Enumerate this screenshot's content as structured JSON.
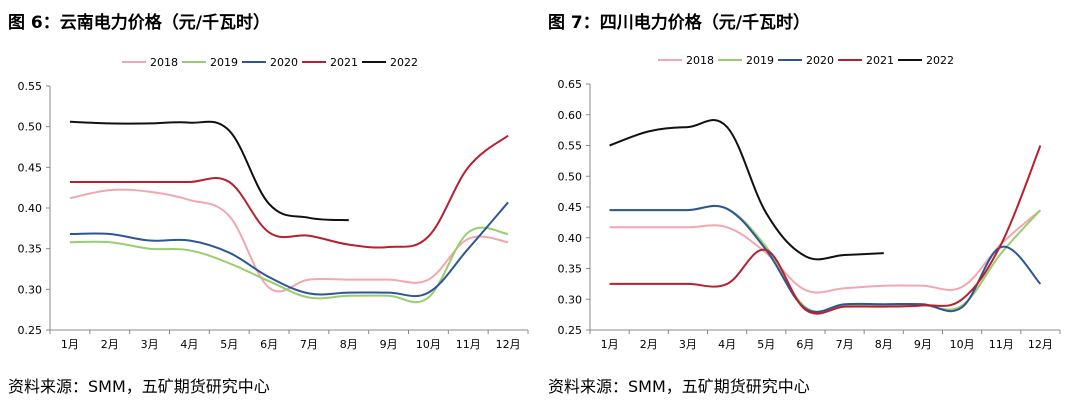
{
  "charts": [
    {
      "title": "图 6：云南电力价格（元/千瓦时）",
      "source": "资料来源：SMM，五矿期货研究中心",
      "chart_data": {
        "type": "line",
        "categories": [
          "1月",
          "2月",
          "3月",
          "4月",
          "5月",
          "6月",
          "7月",
          "8月",
          "9月",
          "10月",
          "11月",
          "12月"
        ],
        "ylim": [
          0.25,
          0.55
        ],
        "yticks": [
          "0.25",
          "0.30",
          "0.35",
          "0.40",
          "0.45",
          "0.50",
          "0.55"
        ],
        "ytick_values": [
          0.25,
          0.3,
          0.35,
          0.4,
          0.45,
          0.5,
          0.55
        ],
        "grid": false,
        "legend_position": "top",
        "series": [
          {
            "name": "2018",
            "color": "#f4a6ae",
            "values": [
              0.412,
              0.422,
              0.42,
              0.41,
              0.39,
              0.302,
              0.312,
              0.312,
              0.312,
              0.312,
              0.362,
              0.358
            ]
          },
          {
            "name": "2019",
            "color": "#9acd6e",
            "values": [
              0.358,
              0.358,
              0.35,
              0.348,
              0.332,
              0.31,
              0.29,
              0.292,
              0.292,
              0.29,
              0.37,
              0.368
            ]
          },
          {
            "name": "2020",
            "color": "#2e5597",
            "values": [
              0.368,
              0.368,
              0.36,
              0.36,
              0.345,
              0.315,
              0.295,
              0.296,
              0.296,
              0.296,
              0.35,
              0.407
            ]
          },
          {
            "name": "2021",
            "color": "#b8202e",
            "values": [
              0.432,
              0.432,
              0.432,
              0.432,
              0.432,
              0.37,
              0.366,
              0.355,
              0.352,
              0.365,
              0.45,
              0.489
            ]
          },
          {
            "name": "2022",
            "color": "#111111",
            "values": [
              0.506,
              0.504,
              0.504,
              0.505,
              0.495,
              0.405,
              0.388,
              0.385,
              null,
              null,
              null,
              null
            ]
          }
        ]
      }
    },
    {
      "title": "图 7：四川电力价格（元/千瓦时）",
      "source": "资料来源：SMM，五矿期货研究中心",
      "chart_data": {
        "type": "line",
        "categories": [
          "1月",
          "2月",
          "3月",
          "4月",
          "5月",
          "6月",
          "7月",
          "8月",
          "9月",
          "10月",
          "11月",
          "12月"
        ],
        "ylim": [
          0.25,
          0.65
        ],
        "yticks": [
          "0.25",
          "0.30",
          "0.35",
          "0.40",
          "0.45",
          "0.50",
          "0.55",
          "0.60",
          "0.65"
        ],
        "ytick_values": [
          0.25,
          0.3,
          0.35,
          0.4,
          0.45,
          0.5,
          0.55,
          0.6,
          0.65
        ],
        "grid": false,
        "legend_position": "top",
        "series": [
          {
            "name": "2018",
            "color": "#f4a6ae",
            "values": [
              0.417,
              0.417,
              0.417,
              0.417,
              0.375,
              0.315,
              0.318,
              0.322,
              0.322,
              0.32,
              0.39,
              0.445
            ]
          },
          {
            "name": "2019",
            "color": "#9acd6e",
            "values": [
              0.445,
              0.445,
              0.445,
              0.447,
              0.385,
              0.287,
              0.29,
              0.29,
              0.29,
              0.29,
              0.375,
              0.445
            ]
          },
          {
            "name": "2020",
            "color": "#2e5597",
            "values": [
              0.445,
              0.445,
              0.445,
              0.447,
              0.38,
              0.285,
              0.292,
              0.292,
              0.292,
              0.287,
              0.385,
              0.325
            ]
          },
          {
            "name": "2021",
            "color": "#b8202e",
            "values": [
              0.325,
              0.325,
              0.325,
              0.325,
              0.38,
              0.283,
              0.288,
              0.288,
              0.29,
              0.3,
              0.39,
              0.55
            ]
          },
          {
            "name": "2022",
            "color": "#111111",
            "values": [
              0.55,
              0.573,
              0.58,
              0.58,
              0.44,
              0.37,
              0.372,
              0.375,
              null,
              null,
              null,
              null
            ]
          }
        ]
      }
    }
  ]
}
